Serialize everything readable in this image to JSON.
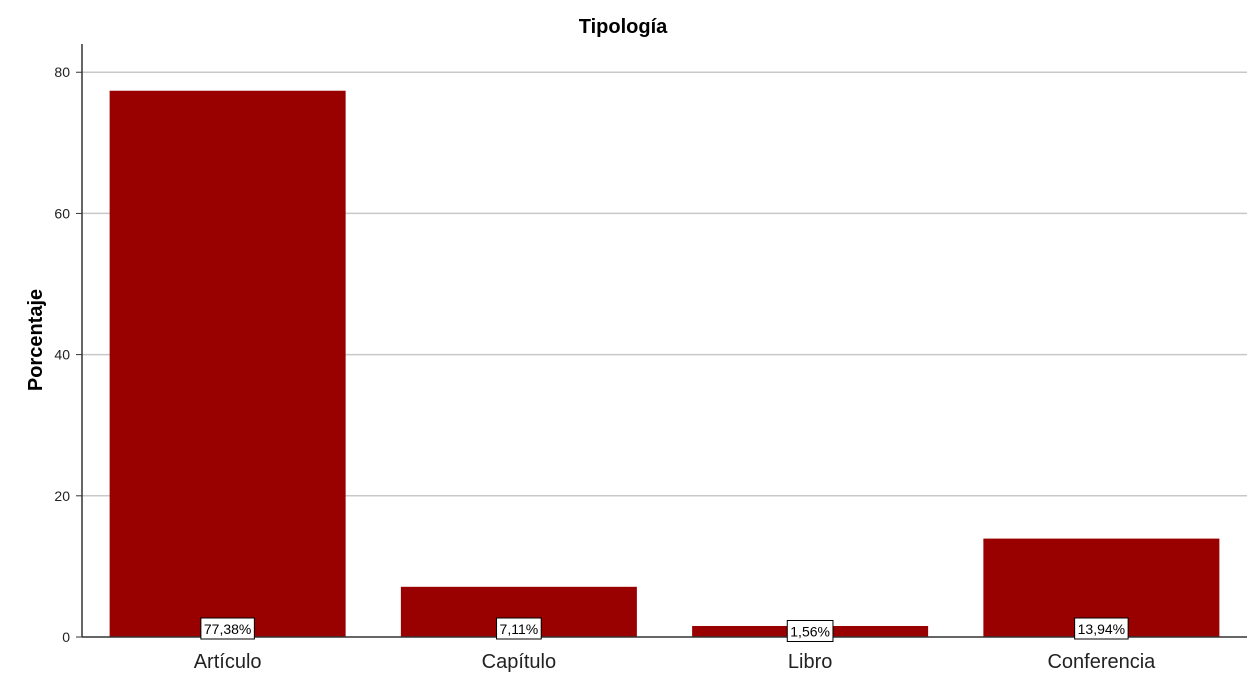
{
  "chart_data": {
    "type": "bar",
    "title": "Tipología",
    "xlabel": "",
    "ylabel": "Porcentaje",
    "categories": [
      "Artículo",
      "Capítulo",
      "Libro",
      "Conferencia"
    ],
    "values": [
      77.38,
      7.11,
      1.56,
      13.94
    ],
    "data_labels": [
      "77,38%",
      "7,11%",
      "1,56%",
      "13,94%"
    ],
    "ylim": [
      0,
      84
    ],
    "yticks": [
      0,
      20,
      40,
      60,
      80
    ],
    "ytick_labels": [
      "0",
      "20",
      "40",
      "60",
      "80"
    ],
    "grid": true,
    "legend": "none",
    "bar_color": "#990000",
    "grid_color": "#c8c8c8",
    "axis_color": "#333333"
  }
}
